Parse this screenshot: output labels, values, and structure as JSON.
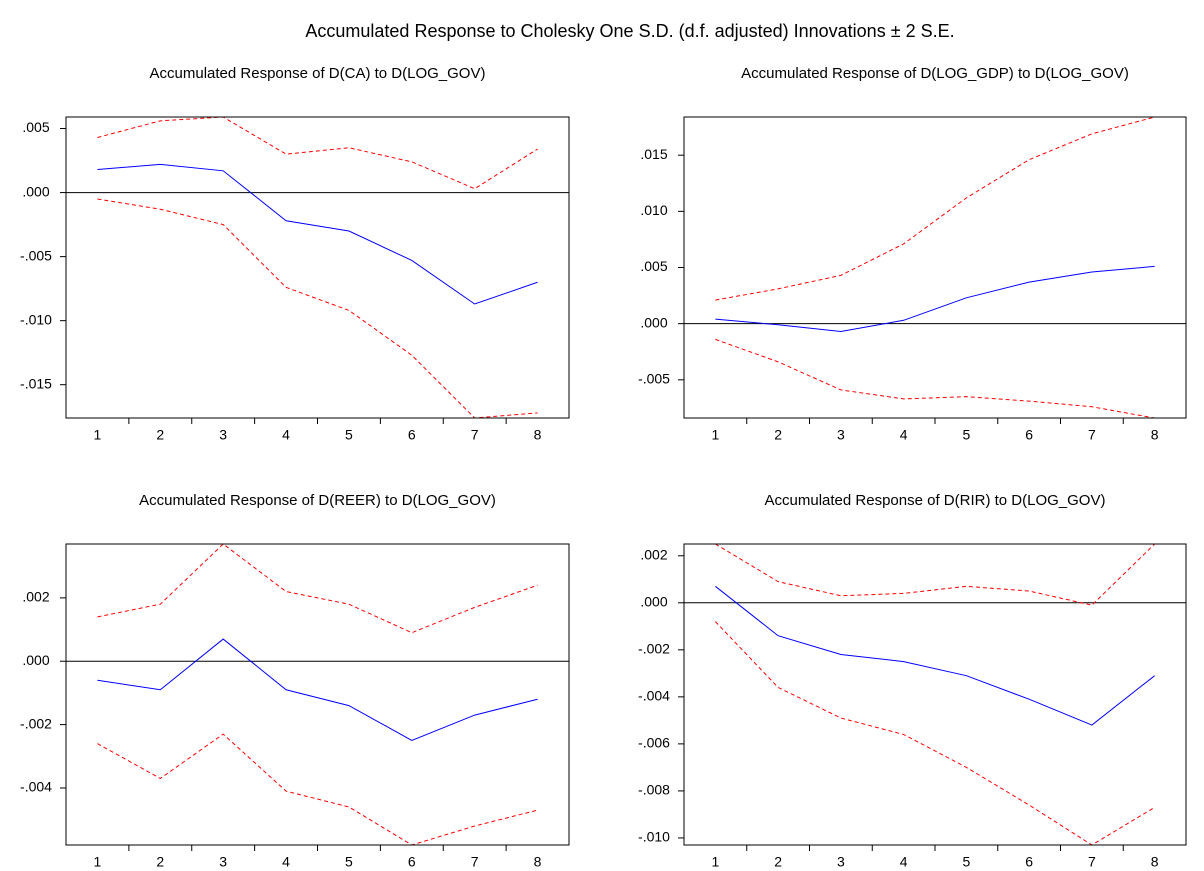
{
  "title": "Accumulated Response to Cholesky One S.D. (d.f. adjusted) Innovations ± 2 S.E.",
  "chart_data": [
    {
      "type": "line",
      "title": "Accumulated Response of D(CA) to D(LOG_GOV)",
      "categories": [
        "1",
        "2",
        "3",
        "4",
        "5",
        "6",
        "7",
        "8"
      ],
      "ylim": [
        -0.0176,
        0.0059
      ],
      "yticks": [
        {
          "value": 0.005,
          "label": ".005"
        },
        {
          "value": 0,
          "label": ".000"
        },
        {
          "value": -0.005,
          "label": "-.005"
        },
        {
          "value": -0.01,
          "label": "-.010"
        },
        {
          "value": -0.015,
          "label": "-.015"
        }
      ],
      "zero_line": true,
      "series": [
        {
          "color": "#0000ff",
          "dashed": false,
          "values": [
            0.0018,
            0.0022,
            0.0017,
            -0.0022,
            -0.003,
            -0.0053,
            -0.0087,
            -0.007
          ]
        },
        {
          "color": "#ff0000",
          "dashed": true,
          "values": [
            0.0043,
            0.0056,
            0.0059,
            0.003,
            0.0035,
            0.0024,
            0.0003,
            0.0034
          ]
        },
        {
          "color": "#ff0000",
          "dashed": true,
          "values": [
            -0.0005,
            -0.0013,
            -0.0025,
            -0.0074,
            -0.0092,
            -0.0127,
            -0.0176,
            -0.0172
          ]
        }
      ]
    },
    {
      "type": "line",
      "title": "Accumulated Response of D(LOG_GDP) to D(LOG_GOV)",
      "categories": [
        "1",
        "2",
        "3",
        "4",
        "5",
        "6",
        "7",
        "8"
      ],
      "ylim": [
        -0.0084,
        0.0184
      ],
      "yticks": [
        {
          "value": 0.015,
          "label": ".015"
        },
        {
          "value": 0.01,
          "label": ".010"
        },
        {
          "value": 0.005,
          "label": ".005"
        },
        {
          "value": 0,
          "label": ".000"
        },
        {
          "value": -0.005,
          "label": "-.005"
        }
      ],
      "zero_line": true,
      "series": [
        {
          "color": "#0000ff",
          "dashed": false,
          "values": [
            0.0004,
            -0.0001,
            -0.0007,
            0.0003,
            0.0023,
            0.0037,
            0.0046,
            0.0051
          ]
        },
        {
          "color": "#ff0000",
          "dashed": true,
          "values": [
            0.0021,
            0.0031,
            0.0043,
            0.0071,
            0.0112,
            0.0146,
            0.0169,
            0.0184
          ]
        },
        {
          "color": "#ff0000",
          "dashed": true,
          "values": [
            -0.0014,
            -0.0034,
            -0.0059,
            -0.0067,
            -0.0065,
            -0.0069,
            -0.0074,
            -0.0084
          ]
        }
      ]
    },
    {
      "type": "line",
      "title": "Accumulated Response of D(REER) to D(LOG_GOV)",
      "categories": [
        "1",
        "2",
        "3",
        "4",
        "5",
        "6",
        "7",
        "8"
      ],
      "ylim": [
        -0.0058,
        0.0037
      ],
      "yticks": [
        {
          "value": 0.002,
          "label": ".002"
        },
        {
          "value": 0,
          "label": ".000"
        },
        {
          "value": -0.002,
          "label": "-.002"
        },
        {
          "value": -0.004,
          "label": "-.004"
        }
      ],
      "zero_line": true,
      "series": [
        {
          "color": "#0000ff",
          "dashed": false,
          "values": [
            -0.0006,
            -0.0009,
            0.0007,
            -0.0009,
            -0.0014,
            -0.0025,
            -0.0017,
            -0.0012
          ]
        },
        {
          "color": "#ff0000",
          "dashed": true,
          "values": [
            0.0014,
            0.0018,
            0.0037,
            0.0022,
            0.0018,
            0.0009,
            0.0017,
            0.0024
          ]
        },
        {
          "color": "#ff0000",
          "dashed": true,
          "values": [
            -0.0026,
            -0.0037,
            -0.0023,
            -0.0041,
            -0.0046,
            -0.0058,
            -0.0052,
            -0.0047
          ]
        }
      ]
    },
    {
      "type": "line",
      "title": "Accumulated Response of D(RIR) to D(LOG_GOV)",
      "categories": [
        "1",
        "2",
        "3",
        "4",
        "5",
        "6",
        "7",
        "8"
      ],
      "ylim": [
        -0.0103,
        0.0025
      ],
      "yticks": [
        {
          "value": 0.002,
          "label": ".002"
        },
        {
          "value": 0,
          "label": ".000"
        },
        {
          "value": -0.002,
          "label": "-.002"
        },
        {
          "value": -0.004,
          "label": "-.004"
        },
        {
          "value": -0.006,
          "label": "-.006"
        },
        {
          "value": -0.008,
          "label": "-.008"
        },
        {
          "value": -0.01,
          "label": "-.010"
        }
      ],
      "zero_line": true,
      "series": [
        {
          "color": "#0000ff",
          "dashed": false,
          "values": [
            0.0007,
            -0.0014,
            -0.0022,
            -0.0025,
            -0.0031,
            -0.0041,
            -0.0052,
            -0.0031
          ]
        },
        {
          "color": "#ff0000",
          "dashed": true,
          "values": [
            0.0025,
            0.0009,
            0.0003,
            0.0004,
            0.0007,
            0.0005,
            -0.0001,
            0.0025
          ]
        },
        {
          "color": "#ff0000",
          "dashed": true,
          "values": [
            -0.0008,
            -0.0036,
            -0.0049,
            -0.0056,
            -0.007,
            -0.0086,
            -0.0103,
            -0.0087
          ]
        }
      ]
    }
  ]
}
